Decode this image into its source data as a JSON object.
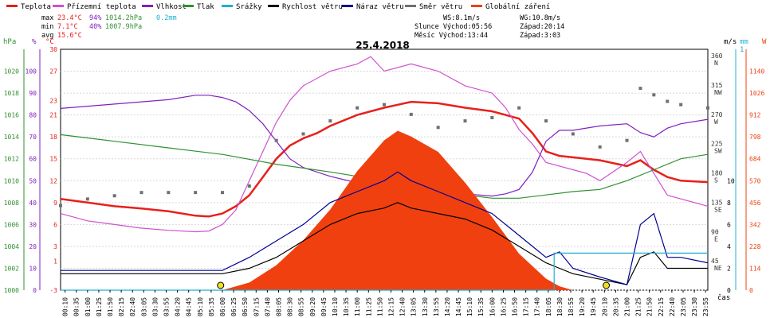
{
  "legend": [
    {
      "label": "Teplota",
      "color": "#e8201a"
    },
    {
      "label": "Přízemní teplota",
      "color": "#d050d0"
    },
    {
      "label": "Vlhkost",
      "color": "#8020c0"
    },
    {
      "label": "Tlak",
      "color": "#309030"
    },
    {
      "label": "Srážky",
      "color": "#20b0d0"
    },
    {
      "label": "Rychlost větru",
      "color": "#000000"
    },
    {
      "label": "Náraz větru",
      "color": "#000090"
    },
    {
      "label": "Směr větru",
      "color": "#707070"
    },
    {
      "label": "Globální záření",
      "color": "#f04010"
    }
  ],
  "stats": {
    "max_label": "max",
    "max_temp": "23.4°C",
    "max_hum": "94%",
    "max_press": "1014.2hPa",
    "max_rain": "0.2mm",
    "min_label": "min",
    "min_temp": "7.1°C",
    "min_hum": "40%",
    "min_press": "1007.9hPa",
    "avg_label": "avg",
    "avg_temp": "15.6°C"
  },
  "wind_info": {
    "ws": "WS:8.1m/s",
    "wg": "WG:10.8m/s",
    "sun": "Slunce Východ:05:56",
    "sun_set": "Západ:20:14",
    "moon": "Měsíc Východ:13:44",
    "moon_set": "Západ:3:03"
  },
  "units": {
    "hpa": "hPa",
    "pct": "%",
    "degc": "°C",
    "ms": "m/s",
    "mm": "mm",
    "w": "W",
    "cas": "čas",
    "ms_marker": "1"
  },
  "chart_data": {
    "type": "line",
    "title": "25.4.2018",
    "x_ticks": [
      "00:10",
      "00:35",
      "01:00",
      "01:25",
      "01:50",
      "02:15",
      "02:40",
      "03:05",
      "03:30",
      "03:55",
      "04:20",
      "04:45",
      "05:10",
      "05:35",
      "06:00",
      "06:25",
      "06:50",
      "07:15",
      "07:40",
      "08:05",
      "08:30",
      "08:55",
      "09:20",
      "09:45",
      "10:10",
      "10:35",
      "11:00",
      "11:25",
      "11:50",
      "12:15",
      "12:40",
      "13:05",
      "13:30",
      "13:55",
      "14:20",
      "14:45",
      "15:10",
      "15:35",
      "16:00",
      "16:25",
      "16:50",
      "17:15",
      "17:40",
      "18:05",
      "18:30",
      "18:55",
      "19:20",
      "19:45",
      "20:10",
      "20:35",
      "21:00",
      "21:25",
      "21:50",
      "22:15",
      "22:40",
      "23:05",
      "23:30",
      "23:55"
    ],
    "xlabel": "čas",
    "axes": {
      "pressure_hpa": {
        "ticks": [
          1000,
          1002,
          1004,
          1006,
          1008,
          1010,
          1012,
          1014,
          1016,
          1018,
          1020
        ],
        "range": [
          1000,
          1022
        ]
      },
      "humidity_pct": {
        "ticks": [
          0,
          10,
          20,
          30,
          40,
          50,
          60,
          70,
          80,
          90,
          100
        ],
        "range": [
          0,
          110
        ]
      },
      "temperature_c": {
        "ticks": [
          -3,
          1,
          3,
          6,
          9,
          12,
          15,
          18,
          21,
          23,
          27,
          30
        ],
        "range": [
          -3,
          30
        ]
      },
      "wind_dir_deg": {
        "ticks": [
          "45 NE",
          "90 E",
          "135 SE",
          "180 S",
          "225 SW",
          "270 W",
          "315 NW",
          "360 N"
        ],
        "range": [
          0,
          370
        ]
      },
      "wind_ms": {
        "ticks": [
          0,
          2,
          4,
          6,
          8,
          10
        ],
        "range": [
          0,
          22
        ]
      },
      "radiation_w": {
        "ticks": [
          0,
          114,
          228,
          342,
          456,
          570,
          684,
          798,
          912,
          1026,
          1140
        ],
        "range": [
          0,
          1254
        ]
      }
    },
    "series": [
      {
        "name": "Teplota",
        "unit": "°C",
        "color": "#e8201a",
        "x": [
          0,
          1,
          2,
          3,
          4,
          5,
          5.5,
          6,
          6.5,
          7,
          7.5,
          8,
          8.5,
          9,
          9.5,
          10,
          11,
          12,
          12.5,
          13,
          14,
          15,
          16,
          16.5,
          17,
          17.5,
          18,
          18.5,
          19,
          20,
          21,
          21.5,
          22,
          22.5,
          23,
          24
        ],
        "y": [
          9.5,
          9.0,
          8.5,
          8.2,
          7.8,
          7.2,
          7.1,
          7.5,
          8.5,
          10,
          12.5,
          15,
          16.8,
          17.8,
          18.5,
          19.5,
          21,
          22,
          22.4,
          22.8,
          22.6,
          22,
          21.5,
          21,
          20.5,
          18.5,
          16,
          15.4,
          15.2,
          14.8,
          14,
          14.8,
          13.5,
          12.5,
          12,
          11.8
        ]
      },
      {
        "name": "Přízemní teplota",
        "unit": "°C",
        "color": "#d050d0",
        "x": [
          0,
          1,
          2,
          3,
          4,
          5,
          5.5,
          6,
          6.5,
          7,
          7.5,
          8,
          8.5,
          9,
          10,
          11,
          11.5,
          12,
          13,
          14,
          15,
          16,
          16.5,
          17,
          17.5,
          18,
          18.5,
          19,
          19.5,
          20,
          21,
          21.5,
          22,
          22.5,
          23,
          24
        ],
        "y": [
          7.5,
          6.5,
          6.0,
          5.5,
          5.2,
          5.0,
          5.1,
          6.0,
          8.0,
          12,
          16,
          20,
          23,
          25,
          27,
          28,
          29,
          27,
          28,
          27,
          25,
          24,
          22,
          19,
          17,
          14.5,
          14,
          13.5,
          13,
          12,
          14.5,
          16,
          13,
          10,
          9.5,
          8.5
        ]
      },
      {
        "name": "Vlhkost",
        "unit": "%",
        "color": "#8020c0",
        "x": [
          0,
          1,
          2,
          3,
          4,
          5,
          5.5,
          6,
          6.5,
          7,
          7.5,
          8,
          8.5,
          9,
          10,
          11,
          12,
          13,
          14,
          15,
          16,
          16.5,
          17,
          17.5,
          18,
          18.5,
          19,
          20,
          21,
          21.5,
          22,
          22.5,
          23,
          24
        ],
        "y": [
          83,
          84,
          85,
          86,
          87,
          89,
          89,
          88,
          86,
          82,
          76,
          68,
          60,
          56,
          52,
          49,
          47,
          46,
          44,
          44,
          43,
          44,
          46,
          54,
          68,
          73,
          73,
          75,
          76,
          72,
          70,
          74,
          76,
          78
        ]
      },
      {
        "name": "Tlak",
        "unit": "hPa",
        "color": "#309030",
        "x": [
          0,
          2,
          4,
          6,
          8,
          10,
          12,
          14,
          16,
          17,
          18,
          19,
          20,
          21,
          22,
          23,
          24
        ],
        "y": [
          1014.2,
          1013.6,
          1013.0,
          1012.4,
          1011.5,
          1010.8,
          1010.0,
          1009.0,
          1008.4,
          1008.4,
          1008.7,
          1009.0,
          1009.2,
          1010.0,
          1011.0,
          1012.0,
          1012.4
        ]
      },
      {
        "name": "Globální záření",
        "unit": "W",
        "color": "#f04010",
        "x": [
          6,
          7,
          8,
          9,
          10,
          11,
          12,
          12.5,
          13,
          14,
          15,
          16,
          17,
          18,
          18.5,
          19,
          20
        ],
        "y": [
          0,
          40,
          130,
          260,
          420,
          620,
          780,
          830,
          800,
          720,
          560,
          380,
          190,
          60,
          20,
          0,
          0
        ]
      },
      {
        "name": "Rychlost větru",
        "unit": "m/s",
        "color": "#000000",
        "x": [
          0,
          2,
          4,
          6,
          7,
          8,
          9,
          10,
          11,
          12,
          12.5,
          13,
          14,
          15,
          16,
          17,
          18,
          18.5,
          19,
          20,
          21,
          21.5,
          22,
          22.5,
          23,
          24
        ],
        "y": [
          1.5,
          1.5,
          1.5,
          1.5,
          2,
          3,
          4.5,
          6,
          7,
          7.5,
          8,
          7.5,
          7,
          6.5,
          5.5,
          4,
          2.5,
          2,
          1.5,
          1,
          0.5,
          3,
          3.5,
          2,
          2,
          2
        ]
      },
      {
        "name": "Náraz větru",
        "unit": "m/s",
        "color": "#000090",
        "x": [
          0,
          2,
          4,
          6,
          7,
          8,
          9,
          10,
          11,
          12,
          12.5,
          13,
          14,
          15,
          16,
          17,
          18,
          18.5,
          19,
          20,
          21,
          21.5,
          22,
          22.5,
          23,
          24
        ],
        "y": [
          1.8,
          1.8,
          1.8,
          1.8,
          3,
          4.5,
          6,
          8,
          9,
          10,
          10.8,
          10,
          9,
          8,
          7,
          5,
          3,
          3.5,
          2,
          1.2,
          0.5,
          6,
          7,
          3,
          3,
          2.5
        ]
      },
      {
        "name": "Směr větru",
        "unit": "°",
        "color": "#707070",
        "x": [
          0,
          1,
          2,
          3,
          4,
          5,
          6,
          7,
          8,
          9,
          10,
          11,
          12,
          13,
          14,
          15,
          16,
          17,
          18,
          19,
          20,
          21,
          21.5,
          22,
          22.5,
          23,
          24
        ],
        "y": [
          130,
          140,
          145,
          150,
          150,
          150,
          150,
          160,
          230,
          240,
          260,
          280,
          285,
          270,
          250,
          260,
          265,
          280,
          260,
          240,
          220,
          230,
          310,
          300,
          290,
          285,
          280
        ]
      },
      {
        "name": "Srážky",
        "unit": "mm",
        "color": "#20b0d0",
        "x": [
          0,
          18.3,
          18.3,
          24
        ],
        "y": [
          0,
          0,
          0.2,
          0.2
        ]
      }
    ],
    "markers": {
      "sunrise": "05:56",
      "sunset": "20:14"
    }
  }
}
